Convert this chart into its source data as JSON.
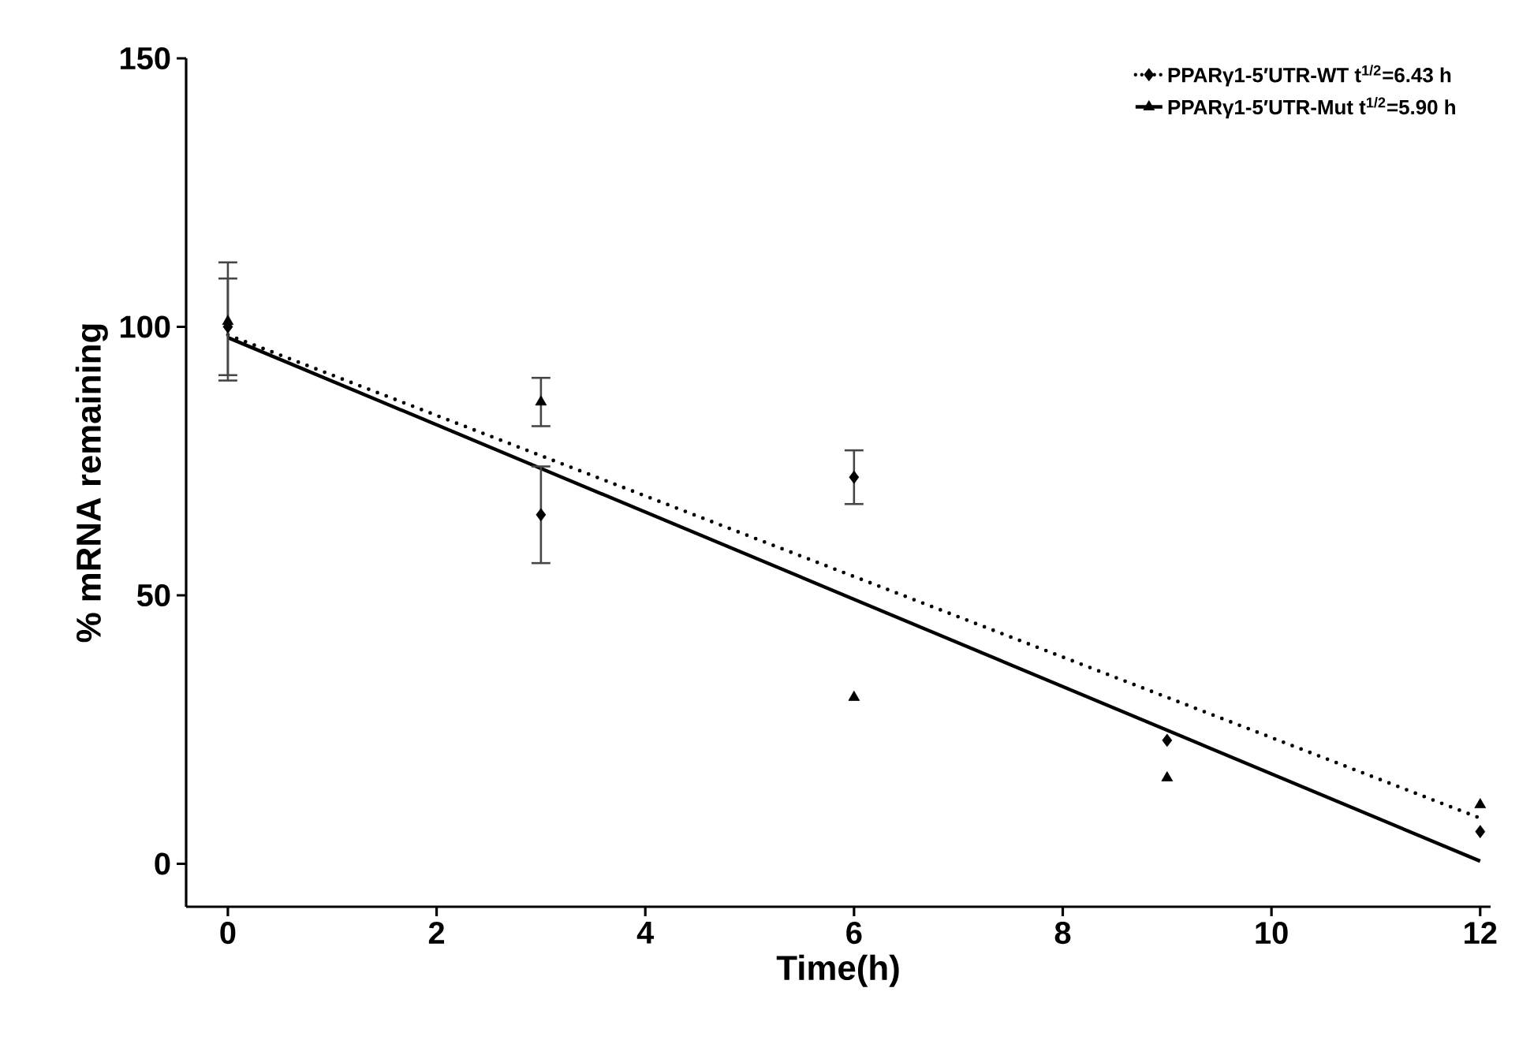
{
  "chart_data": {
    "type": "scatter",
    "xlabel": "Time(h)",
    "ylabel": "% mRNA remaining",
    "xlim": [
      -0.4,
      12.1
    ],
    "ylim": [
      -8,
      150
    ],
    "xticks": [
      0,
      2,
      4,
      6,
      8,
      10,
      12
    ],
    "yticks": [
      0,
      50,
      100,
      150
    ],
    "grid": false,
    "legend": "top right",
    "series": [
      {
        "name": "PPARγ1-5′UTR-WT t$^{1/2}$=6.43 h",
        "color": "#000000",
        "marker": "diamond",
        "x": [
          0,
          3,
          6,
          9,
          12
        ],
        "values": [
          100,
          65,
          72,
          23,
          6
        ],
        "errors": [
          9,
          9,
          5,
          null,
          null
        ]
      },
      {
        "name": "PPARγ1-5′UTR-Mut t$^{1/2}$=5.90 h",
        "color": "#000000",
        "marker": "triangle",
        "x": [
          0,
          3,
          6,
          9,
          12
        ],
        "values": [
          101,
          86,
          31,
          16,
          11
        ],
        "errors": [
          11,
          4.5,
          null,
          null,
          null
        ]
      },
      {
        "type": "line",
        "color": "#000000",
        "line_style": "dotted",
        "x": [
          0,
          12
        ],
        "values": [
          98.5,
          8.5
        ]
      },
      {
        "type": "line",
        "color": "#000000",
        "line_style": "solid",
        "x": [
          0,
          12
        ],
        "values": [
          98,
          0.5
        ]
      }
    ]
  }
}
